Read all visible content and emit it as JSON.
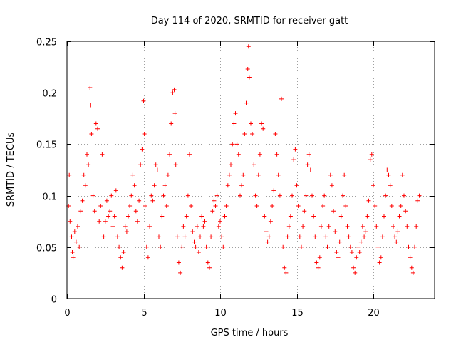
{
  "chart_data": {
    "type": "scatter",
    "title": "Day 114 of 2020, SRMTID for receiver gatt",
    "xlabel": "GPS time / hours",
    "ylabel": "SRMTID / TECUs",
    "xlim": [
      0,
      24
    ],
    "ylim": [
      0,
      0.25
    ],
    "grid": true,
    "marker": "+",
    "color": "#ff0000",
    "x_ticks": [
      0,
      5,
      10,
      15,
      20
    ],
    "x_tick_labels": [
      "0",
      "5",
      "10",
      "15",
      "20"
    ],
    "y_ticks": [
      0,
      0.05,
      0.1,
      0.15,
      0.2,
      0.25
    ],
    "y_tick_labels": [
      "0",
      "0.05",
      "0.1",
      "0.15",
      "0.2",
      "0.25"
    ],
    "series": [
      {
        "name": "SRMTID",
        "points": [
          [
            0.1,
            0.09
          ],
          [
            0.15,
            0.12
          ],
          [
            0.2,
            0.075
          ],
          [
            0.3,
            0.06
          ],
          [
            0.35,
            0.045
          ],
          [
            0.4,
            0.04
          ],
          [
            0.5,
            0.065
          ],
          [
            0.6,
            0.055
          ],
          [
            0.7,
            0.07
          ],
          [
            0.8,
            0.05
          ],
          [
            0.9,
            0.085
          ],
          [
            1.0,
            0.095
          ],
          [
            1.1,
            0.12
          ],
          [
            1.2,
            0.11
          ],
          [
            1.3,
            0.14
          ],
          [
            1.4,
            0.13
          ],
          [
            1.5,
            0.205
          ],
          [
            1.55,
            0.188
          ],
          [
            1.6,
            0.16
          ],
          [
            1.7,
            0.1
          ],
          [
            1.8,
            0.085
          ],
          [
            1.9,
            0.17
          ],
          [
            2.0,
            0.165
          ],
          [
            2.1,
            0.075
          ],
          [
            2.2,
            0.09
          ],
          [
            2.3,
            0.14
          ],
          [
            2.4,
            0.06
          ],
          [
            2.5,
            0.075
          ],
          [
            2.6,
            0.095
          ],
          [
            2.7,
            0.08
          ],
          [
            2.8,
            0.085
          ],
          [
            2.9,
            0.1
          ],
          [
            3.0,
            0.07
          ],
          [
            3.1,
            0.08
          ],
          [
            3.2,
            0.105
          ],
          [
            3.3,
            0.06
          ],
          [
            3.4,
            0.05
          ],
          [
            3.5,
            0.04
          ],
          [
            3.6,
            0.03
          ],
          [
            3.7,
            0.045
          ],
          [
            3.8,
            0.07
          ],
          [
            3.9,
            0.065
          ],
          [
            4.0,
            0.08
          ],
          [
            4.1,
            0.09
          ],
          [
            4.2,
            0.1
          ],
          [
            4.3,
            0.12
          ],
          [
            4.4,
            0.11
          ],
          [
            4.5,
            0.085
          ],
          [
            4.6,
            0.075
          ],
          [
            4.7,
            0.095
          ],
          [
            4.8,
            0.13
          ],
          [
            4.9,
            0.145
          ],
          [
            5.0,
            0.192
          ],
          [
            5.05,
            0.16
          ],
          [
            5.1,
            0.09
          ],
          [
            5.2,
            0.05
          ],
          [
            5.3,
            0.04
          ],
          [
            5.4,
            0.07
          ],
          [
            5.5,
            0.1
          ],
          [
            5.6,
            0.095
          ],
          [
            5.7,
            0.11
          ],
          [
            5.8,
            0.13
          ],
          [
            5.9,
            0.125
          ],
          [
            6.0,
            0.06
          ],
          [
            6.1,
            0.05
          ],
          [
            6.2,
            0.08
          ],
          [
            6.3,
            0.1
          ],
          [
            6.4,
            0.11
          ],
          [
            6.5,
            0.09
          ],
          [
            6.6,
            0.12
          ],
          [
            6.7,
            0.14
          ],
          [
            6.8,
            0.17
          ],
          [
            6.9,
            0.2
          ],
          [
            7.0,
            0.203
          ],
          [
            7.05,
            0.18
          ],
          [
            7.1,
            0.13
          ],
          [
            7.2,
            0.06
          ],
          [
            7.3,
            0.035
          ],
          [
            7.4,
            0.025
          ],
          [
            7.5,
            0.05
          ],
          [
            7.6,
            0.07
          ],
          [
            7.7,
            0.06
          ],
          [
            7.8,
            0.08
          ],
          [
            7.9,
            0.1
          ],
          [
            8.0,
            0.14
          ],
          [
            8.1,
            0.09
          ],
          [
            8.2,
            0.065
          ],
          [
            8.3,
            0.055
          ],
          [
            8.4,
            0.05
          ],
          [
            8.5,
            0.07
          ],
          [
            8.6,
            0.045
          ],
          [
            8.7,
            0.06
          ],
          [
            8.8,
            0.08
          ],
          [
            8.9,
            0.07
          ],
          [
            9.0,
            0.075
          ],
          [
            9.1,
            0.05
          ],
          [
            9.2,
            0.035
          ],
          [
            9.3,
            0.03
          ],
          [
            9.4,
            0.06
          ],
          [
            9.5,
            0.085
          ],
          [
            9.6,
            0.095
          ],
          [
            9.7,
            0.09
          ],
          [
            9.8,
            0.1
          ],
          [
            9.9,
            0.07
          ],
          [
            10.0,
            0.075
          ],
          [
            10.1,
            0.06
          ],
          [
            10.2,
            0.05
          ],
          [
            10.3,
            0.08
          ],
          [
            10.4,
            0.09
          ],
          [
            10.5,
            0.11
          ],
          [
            10.6,
            0.12
          ],
          [
            10.7,
            0.13
          ],
          [
            10.8,
            0.15
          ],
          [
            10.9,
            0.17
          ],
          [
            11.0,
            0.18
          ],
          [
            11.1,
            0.15
          ],
          [
            11.2,
            0.14
          ],
          [
            11.3,
            0.1
          ],
          [
            11.4,
            0.11
          ],
          [
            11.5,
            0.12
          ],
          [
            11.6,
            0.16
          ],
          [
            11.7,
            0.19
          ],
          [
            11.8,
            0.223
          ],
          [
            11.85,
            0.245
          ],
          [
            11.9,
            0.215
          ],
          [
            12.0,
            0.17
          ],
          [
            12.1,
            0.16
          ],
          [
            12.2,
            0.13
          ],
          [
            12.3,
            0.1
          ],
          [
            12.4,
            0.09
          ],
          [
            12.5,
            0.12
          ],
          [
            12.6,
            0.14
          ],
          [
            12.7,
            0.17
          ],
          [
            12.8,
            0.165
          ],
          [
            12.9,
            0.08
          ],
          [
            13.0,
            0.065
          ],
          [
            13.1,
            0.055
          ],
          [
            13.2,
            0.06
          ],
          [
            13.3,
            0.075
          ],
          [
            13.4,
            0.09
          ],
          [
            13.5,
            0.105
          ],
          [
            13.6,
            0.16
          ],
          [
            13.7,
            0.14
          ],
          [
            13.8,
            0.12
          ],
          [
            13.9,
            0.1
          ],
          [
            14.0,
            0.194
          ],
          [
            14.1,
            0.05
          ],
          [
            14.2,
            0.03
          ],
          [
            14.3,
            0.025
          ],
          [
            14.4,
            0.06
          ],
          [
            14.5,
            0.07
          ],
          [
            14.6,
            0.08
          ],
          [
            14.7,
            0.1
          ],
          [
            14.8,
            0.135
          ],
          [
            14.9,
            0.145
          ],
          [
            15.0,
            0.11
          ],
          [
            15.1,
            0.09
          ],
          [
            15.2,
            0.06
          ],
          [
            15.3,
            0.05
          ],
          [
            15.4,
            0.07
          ],
          [
            15.5,
            0.085
          ],
          [
            15.6,
            0.1
          ],
          [
            15.7,
            0.13
          ],
          [
            15.8,
            0.14
          ],
          [
            15.9,
            0.125
          ],
          [
            16.0,
            0.1
          ],
          [
            16.1,
            0.08
          ],
          [
            16.2,
            0.06
          ],
          [
            16.3,
            0.035
          ],
          [
            16.4,
            0.03
          ],
          [
            16.5,
            0.04
          ],
          [
            16.6,
            0.07
          ],
          [
            16.7,
            0.09
          ],
          [
            16.8,
            0.1
          ],
          [
            16.9,
            0.06
          ],
          [
            17.0,
            0.05
          ],
          [
            17.1,
            0.07
          ],
          [
            17.2,
            0.12
          ],
          [
            17.3,
            0.11
          ],
          [
            17.4,
            0.085
          ],
          [
            17.5,
            0.065
          ],
          [
            17.6,
            0.045
          ],
          [
            17.7,
            0.04
          ],
          [
            17.8,
            0.055
          ],
          [
            17.9,
            0.08
          ],
          [
            18.0,
            0.1
          ],
          [
            18.1,
            0.12
          ],
          [
            18.2,
            0.09
          ],
          [
            18.3,
            0.07
          ],
          [
            18.4,
            0.06
          ],
          [
            18.5,
            0.05
          ],
          [
            18.6,
            0.045
          ],
          [
            18.7,
            0.03
          ],
          [
            18.8,
            0.025
          ],
          [
            18.9,
            0.04
          ],
          [
            19.0,
            0.05
          ],
          [
            19.1,
            0.045
          ],
          [
            19.2,
            0.055
          ],
          [
            19.3,
            0.07
          ],
          [
            19.4,
            0.06
          ],
          [
            19.5,
            0.065
          ],
          [
            19.6,
            0.08
          ],
          [
            19.7,
            0.095
          ],
          [
            19.8,
            0.135
          ],
          [
            19.9,
            0.14
          ],
          [
            20.0,
            0.11
          ],
          [
            20.1,
            0.09
          ],
          [
            20.2,
            0.07
          ],
          [
            20.3,
            0.05
          ],
          [
            20.4,
            0.035
          ],
          [
            20.5,
            0.04
          ],
          [
            20.6,
            0.06
          ],
          [
            20.7,
            0.08
          ],
          [
            20.8,
            0.1
          ],
          [
            20.9,
            0.125
          ],
          [
            21.0,
            0.12
          ],
          [
            21.1,
            0.11
          ],
          [
            21.2,
            0.09
          ],
          [
            21.3,
            0.07
          ],
          [
            21.4,
            0.06
          ],
          [
            21.5,
            0.055
          ],
          [
            21.6,
            0.065
          ],
          [
            21.7,
            0.08
          ],
          [
            21.8,
            0.09
          ],
          [
            21.9,
            0.12
          ],
          [
            22.0,
            0.1
          ],
          [
            22.1,
            0.085
          ],
          [
            22.2,
            0.07
          ],
          [
            22.3,
            0.05
          ],
          [
            22.4,
            0.04
          ],
          [
            22.5,
            0.03
          ],
          [
            22.6,
            0.025
          ],
          [
            22.7,
            0.05
          ],
          [
            22.8,
            0.07
          ],
          [
            22.9,
            0.095
          ],
          [
            23.0,
            0.1
          ]
        ]
      }
    ]
  }
}
